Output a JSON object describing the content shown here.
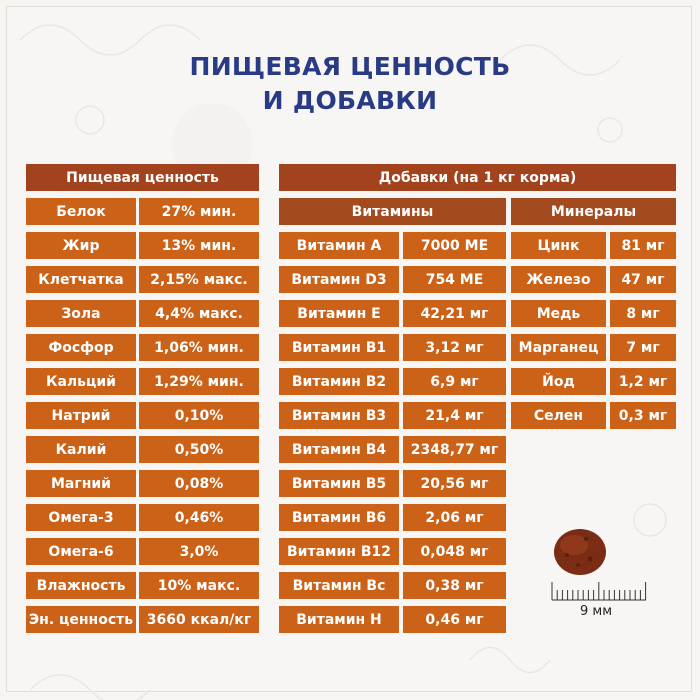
{
  "title": [
    "ПИЩЕВАЯ ЦЕННОСТЬ",
    "И ДОБАВКИ"
  ],
  "nutrition": {
    "header": "Пищевая ценность",
    "rows": [
      {
        "name": "Белок",
        "value": "27% мин."
      },
      {
        "name": "Жир",
        "value": "13% мин."
      },
      {
        "name": "Клетчатка",
        "value": "2,15% макс."
      },
      {
        "name": "Зола",
        "value": "4,4% макс."
      },
      {
        "name": "Фосфор",
        "value": "1,06% мин."
      },
      {
        "name": "Кальций",
        "value": "1,29% мин."
      },
      {
        "name": "Натрий",
        "value": "0,10%"
      },
      {
        "name": "Калий",
        "value": "0,50%"
      },
      {
        "name": "Магний",
        "value": "0,08%"
      },
      {
        "name": "Омега-3",
        "value": "0,46%"
      },
      {
        "name": "Омега-6",
        "value": "3,0%"
      },
      {
        "name": "Влажность",
        "value": "10% макс."
      },
      {
        "name": "Эн. ценность",
        "value": "3660 ккал/кг"
      }
    ]
  },
  "additives": {
    "header": "Добавки (на 1 кг корма)",
    "vitamins": {
      "header": "Витамины",
      "rows": [
        {
          "name": "Витамин A",
          "value": "7000 МЕ"
        },
        {
          "name": "Витамин D3",
          "value": "754 МЕ"
        },
        {
          "name": "Витамин E",
          "value": "42,21 мг"
        },
        {
          "name": "Витамин B1",
          "value": "3,12 мг"
        },
        {
          "name": "Витамин B2",
          "value": "6,9 мг"
        },
        {
          "name": "Витамин B3",
          "value": "21,4 мг"
        },
        {
          "name": "Витамин B4",
          "value": "2348,77 мг"
        },
        {
          "name": "Витамин B5",
          "value": "20,56 мг"
        },
        {
          "name": "Витамин B6",
          "value": "2,06 мг"
        },
        {
          "name": "Витамин B12",
          "value": "0,048 мг"
        },
        {
          "name": "Витамин Bc",
          "value": "0,38 мг"
        },
        {
          "name": "Витамин H",
          "value": "0,46 мг"
        }
      ]
    },
    "minerals": {
      "header": "Минералы",
      "rows": [
        {
          "name": "Цинк",
          "value": "81 мг"
        },
        {
          "name": "Железо",
          "value": "47 мг"
        },
        {
          "name": "Медь",
          "value": "8 мг"
        },
        {
          "name": "Марганец",
          "value": "7 мг"
        },
        {
          "name": "Йод",
          "value": "1,2 мг"
        },
        {
          "name": "Селен",
          "value": "0,3 мг"
        }
      ]
    }
  },
  "kibble": {
    "size_label": "9 мм"
  }
}
